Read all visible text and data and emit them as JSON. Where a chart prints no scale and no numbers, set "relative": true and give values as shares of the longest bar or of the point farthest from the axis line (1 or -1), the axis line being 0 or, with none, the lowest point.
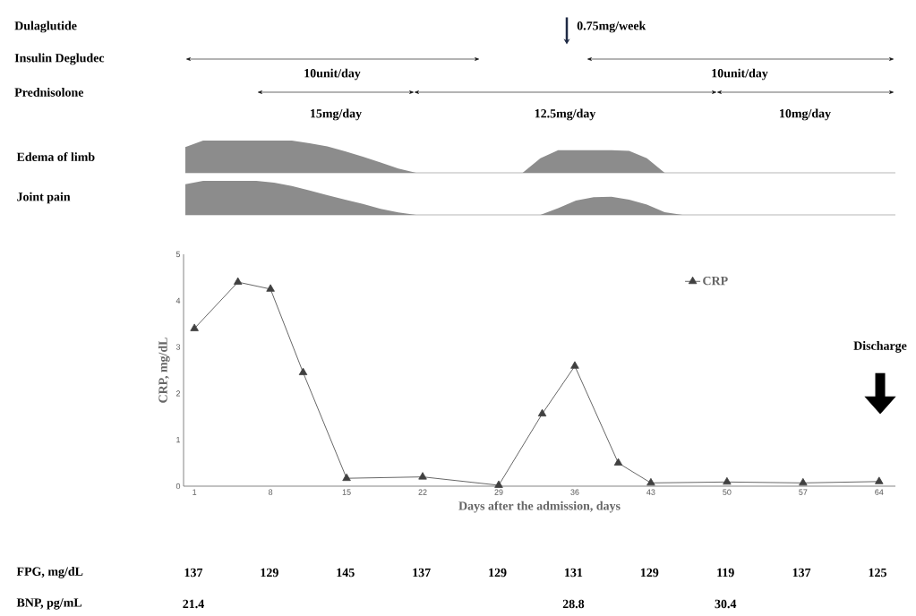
{
  "chart_data": [
    {
      "type": "other",
      "annotations": [
        "Dulaglutide",
        "0.75mg/week",
        "Insulin Degludec",
        "10unit/day",
        "10unit/day",
        "Prednisolone",
        "15mg/day",
        "12.5mg/day",
        "10mg/day"
      ]
    },
    {
      "type": "area",
      "ylabel": "Edema of limb",
      "relative": true,
      "color": "#8c8c8c",
      "categories": [
        null,
        null,
        null,
        null,
        null,
        null,
        null,
        null,
        null,
        null,
        null,
        null,
        null,
        null,
        null,
        null,
        null,
        null,
        null,
        null,
        null,
        null,
        null,
        null,
        null,
        null,
        null,
        null,
        null,
        null,
        null,
        null,
        null,
        null,
        null,
        null,
        null,
        null,
        null,
        null,
        null
      ],
      "values": [
        0.8,
        1,
        1,
        1,
        1,
        1,
        1,
        0.92,
        0.82,
        0.67,
        0.5,
        0.32,
        0.13,
        0,
        0,
        0,
        0,
        0,
        0,
        0,
        0.45,
        0.7,
        0.7,
        0.7,
        0.7,
        0.68,
        0.45,
        0,
        0,
        0,
        0,
        0,
        0,
        0,
        0,
        0,
        0,
        0,
        0,
        0,
        0
      ]
    },
    {
      "type": "area",
      "ylabel": "Joint pain",
      "relative": true,
      "color": "#8c8c8c",
      "categories": [
        null,
        null,
        null,
        null,
        null,
        null,
        null,
        null,
        null,
        null,
        null,
        null,
        null,
        null,
        null,
        null,
        null,
        null,
        null,
        null,
        null,
        null,
        null,
        null,
        null,
        null,
        null,
        null,
        null,
        null,
        null,
        null,
        null,
        null,
        null,
        null,
        null,
        null,
        null,
        null,
        null
      ],
      "values": [
        0.9,
        1,
        1,
        1,
        1,
        0.95,
        0.85,
        0.72,
        0.58,
        0.45,
        0.32,
        0.18,
        0.07,
        0,
        0,
        0,
        0,
        0,
        0,
        0,
        0,
        0.2,
        0.42,
        0.52,
        0.53,
        0.45,
        0.3,
        0.08,
        0,
        0,
        0,
        0,
        0,
        0,
        0,
        0,
        0,
        0,
        0,
        0,
        0
      ]
    },
    {
      "type": "line",
      "xlabel": "Days after the admission, days",
      "ylabel": "CRP, mg/dL",
      "xlim": [
        0,
        65.5
      ],
      "ylim": [
        0,
        5
      ],
      "xticks": [
        1,
        8,
        15,
        22,
        29,
        36,
        43,
        50,
        57,
        64
      ],
      "yticks": [
        0,
        1,
        2,
        3,
        4,
        5
      ],
      "legend": "top right",
      "marker": "triangle",
      "annotations": [
        "Discharge"
      ],
      "series": [
        {
          "name": "CRP",
          "color": "#404040",
          "x": [
            1,
            5,
            8,
            11,
            15,
            22,
            29,
            33,
            36,
            40,
            43,
            50,
            57,
            64
          ],
          "values": [
            3.4,
            4.4,
            4.25,
            2.45,
            0.17,
            0.2,
            0.02,
            1.56,
            2.59,
            0.5,
            0.07,
            0.09,
            0.07,
            0.1
          ]
        }
      ]
    },
    {
      "type": "other",
      "annotations": [
        "FPG, mg/dL",
        "137",
        "129",
        "145",
        "137",
        "129",
        "131",
        "129",
        "119",
        "137",
        "125",
        "BNP, pg/mL",
        "21.4",
        "28.8",
        "30.4"
      ]
    }
  ]
}
